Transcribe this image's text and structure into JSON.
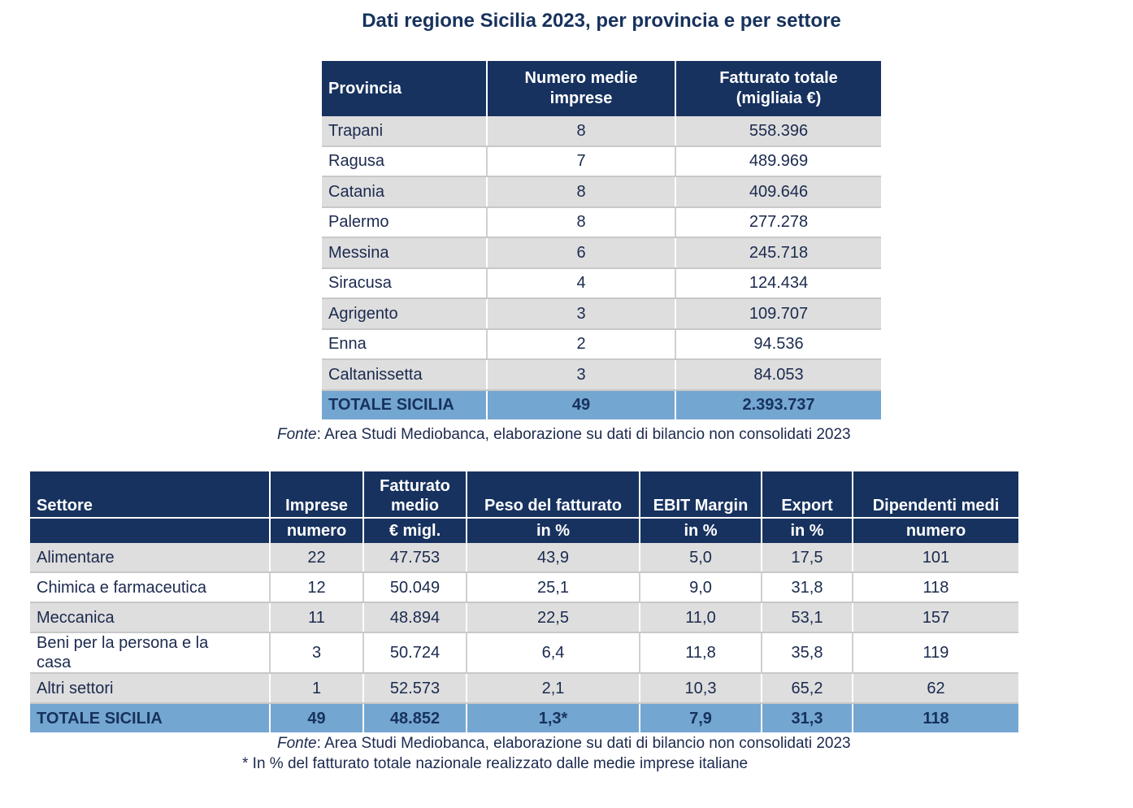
{
  "title": "Dati regione Sicilia 2023, per provincia e per settore",
  "table1": {
    "header": [
      [
        "Provincia"
      ],
      [
        "Numero medie",
        "imprese"
      ],
      [
        "Fatturato totale",
        "(migliaia €)"
      ]
    ],
    "rows": [
      [
        "Trapani",
        "8",
        "558.396"
      ],
      [
        "Ragusa",
        "7",
        "489.969"
      ],
      [
        "Catania",
        "8",
        "409.646"
      ],
      [
        "Palermo",
        "8",
        "277.278"
      ],
      [
        "Messina",
        "6",
        "245.718"
      ],
      [
        "Siracusa",
        "4",
        "124.434"
      ],
      [
        "Agrigento",
        "3",
        "109.707"
      ],
      [
        "Enna",
        "2",
        "94.536"
      ],
      [
        "Caltanissetta",
        "3",
        "84.053"
      ]
    ],
    "total": [
      "TOTALE SICILIA",
      "49",
      "2.393.737"
    ],
    "source": {
      "label": "Fonte",
      "text": ": Area Studi Mediobanca, elaborazione su dati di bilancio non consolidati 2023"
    }
  },
  "table2": {
    "header": [
      "Settore",
      "Imprese",
      "Fatturato medio",
      "Peso del fatturato",
      "EBIT Margin",
      "Export",
      "Dipendenti medi"
    ],
    "units": [
      "numero",
      "€ migl.",
      "in %",
      "in %",
      "in %",
      "numero"
    ],
    "rows": [
      [
        "Alimentare",
        "22",
        "47.753",
        "43,9",
        "5,0",
        "17,5",
        "101"
      ],
      [
        "Chimica e farmaceutica",
        "12",
        "50.049",
        "25,1",
        "9,0",
        "31,8",
        "118"
      ],
      [
        "Meccanica",
        "11",
        "48.894",
        "22,5",
        "11,0",
        "53,1",
        "157"
      ],
      [
        "Beni per la persona e la casa",
        "3",
        "50.724",
        "6,4",
        "11,8",
        "35,8",
        "119"
      ],
      [
        "Altri settori",
        "1",
        "52.573",
        "2,1",
        "10,3",
        "65,2",
        "62"
      ]
    ],
    "total": [
      "TOTALE SICILIA",
      "49",
      "48.852",
      "1,3*",
      "7,9",
      "31,3",
      "118"
    ],
    "source": {
      "label": "Fonte",
      "text": ": Area Studi Mediobanca, elaborazione su dati di bilancio non consolidati 2023"
    },
    "footnote": "* In % del fatturato totale nazionale realizzato dalle medie imprese italiane"
  }
}
